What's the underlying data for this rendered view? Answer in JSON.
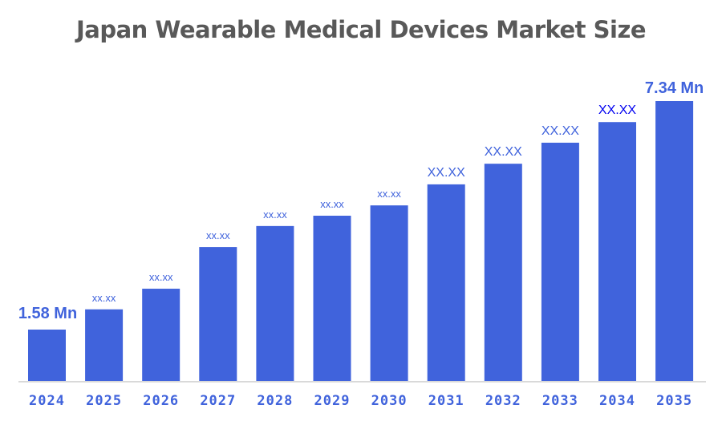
{
  "chart_data": {
    "type": "bar",
    "title": "Japan Wearable Medical Devices Market Size",
    "categories": [
      "2024",
      "2025",
      "2026",
      "2027",
      "2028",
      "2029",
      "2030",
      "2031",
      "2032",
      "2033",
      "2034",
      "2035"
    ],
    "values": [
      1.58,
      2.09,
      2.61,
      3.66,
      4.19,
      4.45,
      4.71,
      5.24,
      5.76,
      6.29,
      6.81,
      7.34
    ],
    "data_labels": [
      "1.58 Mn",
      "xx.xx",
      "xx.xx",
      "xx.xx",
      "xx.xx",
      "xx.xx",
      "xx.xx",
      "XX.XX",
      "XX.XX",
      "XX.XX",
      "XX.XX",
      "7.34 Mn"
    ],
    "unit": "Mn",
    "xlabel": "",
    "ylabel": "",
    "ylim": [
      0.29,
      7.34
    ],
    "grid": false,
    "legend": "none",
    "colors": {
      "bar": "#4063DC",
      "label": "#4063DC",
      "label_highlight": "#0000F0",
      "axis": "#D9D9D9",
      "title": "#595959"
    }
  }
}
